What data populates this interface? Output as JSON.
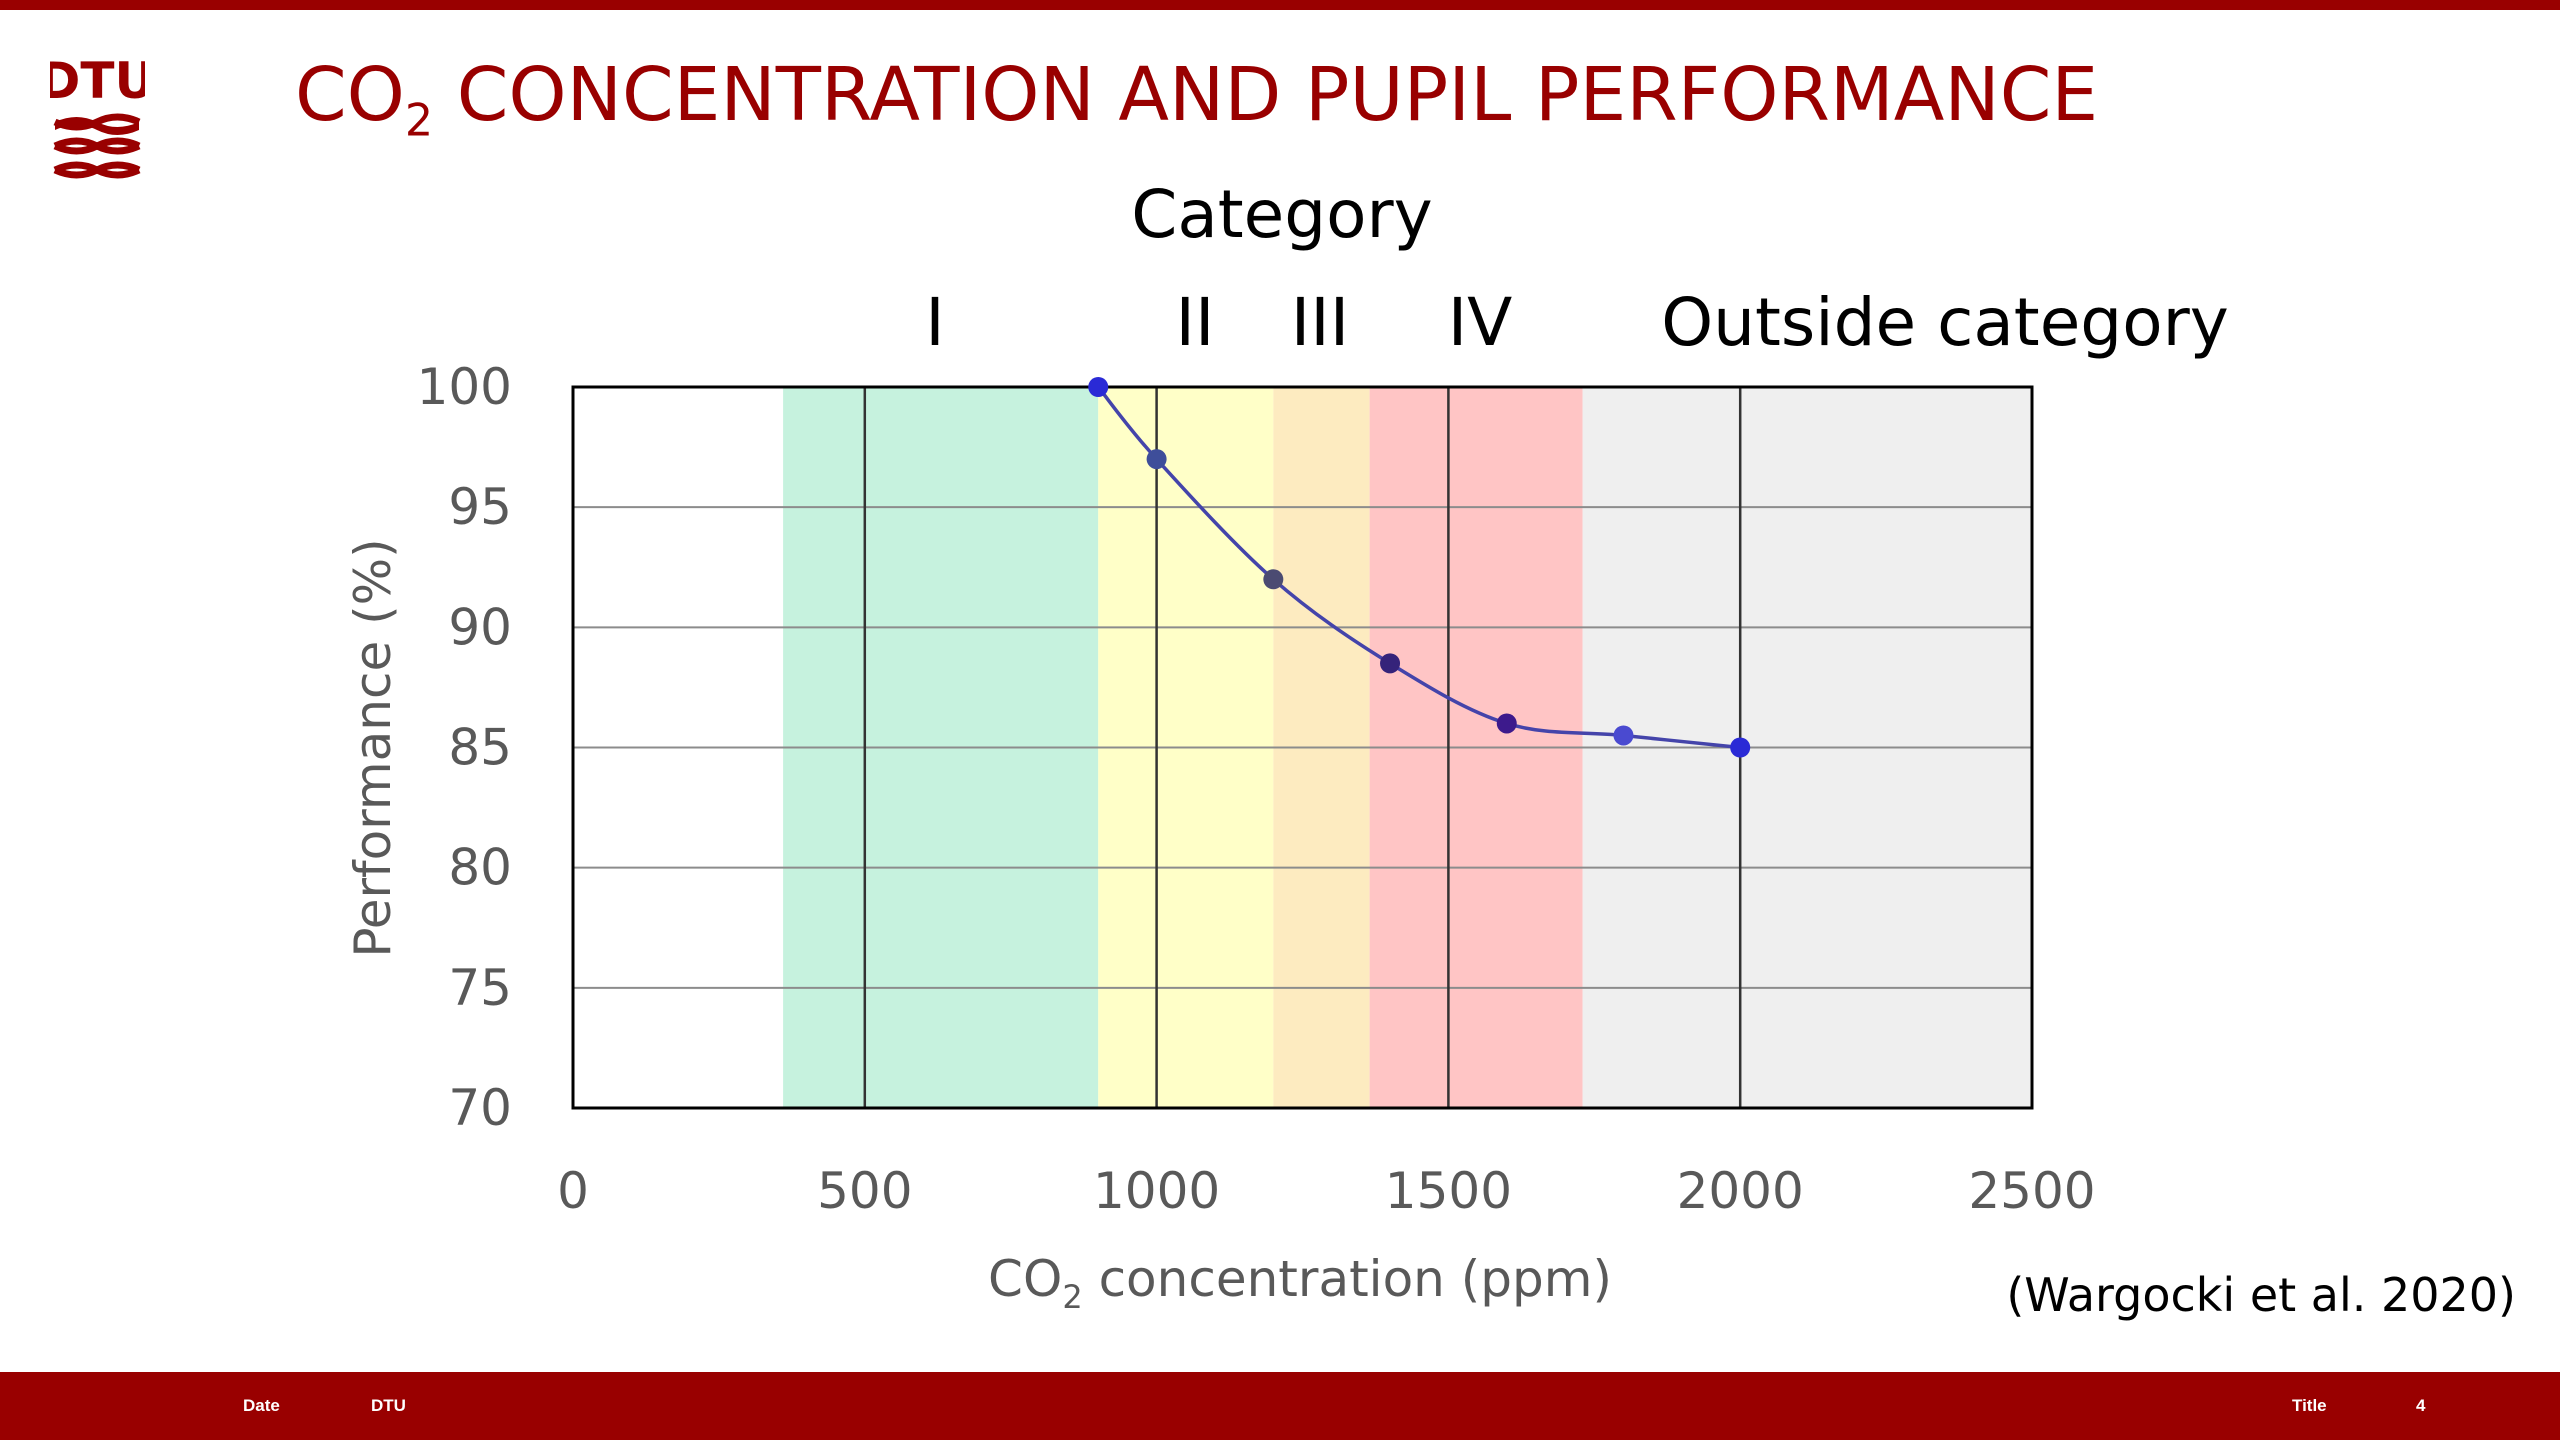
{
  "slide": {
    "title_prefix": "CO",
    "title_sub": "2",
    "title_suffix": " CONCENTRATION AND PUPIL PERFORMANCE",
    "logo_text": "DTU",
    "citation": "(Wargocki et al. 2020)",
    "accent_color": "#990000"
  },
  "footer": {
    "date": "Date",
    "org": "DTU",
    "title": "Title",
    "page": "4"
  },
  "chart_data": {
    "type": "scatter",
    "x_label_prefix": "CO",
    "x_label_sub": "2",
    "x_label_suffix": " concentration (ppm)",
    "ylabel": "Performance (%)",
    "xlim": [
      0,
      2500
    ],
    "ylim": [
      70,
      100
    ],
    "x_ticks": [
      0,
      500,
      1000,
      1500,
      2000,
      2500
    ],
    "y_ticks": [
      70,
      75,
      80,
      85,
      90,
      95,
      100
    ],
    "grid": true,
    "category_heading": "Category",
    "bands": [
      {
        "label": "I",
        "x_start": 360,
        "x_end": 900,
        "color": "#c6f2de"
      },
      {
        "label": "II",
        "x_start": 900,
        "x_end": 1200,
        "color": "#ffffc8"
      },
      {
        "label": "III",
        "x_start": 1200,
        "x_end": 1365,
        "color": "#fdebc0"
      },
      {
        "label": "IV",
        "x_start": 1365,
        "x_end": 1730,
        "color": "#ffc5c5"
      },
      {
        "label": "Outside category",
        "x_start": 1730,
        "x_end": 2500,
        "color": "#efefef"
      }
    ],
    "points": [
      {
        "x": 900,
        "y": 100,
        "color": "#2a2ad6"
      },
      {
        "x": 1000,
        "y": 97,
        "color": "#3e4e9a"
      },
      {
        "x": 1200,
        "y": 92,
        "color": "#4b4b72"
      },
      {
        "x": 1400,
        "y": 88.5,
        "color": "#35237a"
      },
      {
        "x": 1600,
        "y": 86,
        "color": "#3d1a8c"
      },
      {
        "x": 1800,
        "y": 85.5,
        "color": "#4a4ad0"
      },
      {
        "x": 2000,
        "y": 85,
        "color": "#2a2ad6"
      }
    ],
    "trend_color": "#4444aa"
  }
}
